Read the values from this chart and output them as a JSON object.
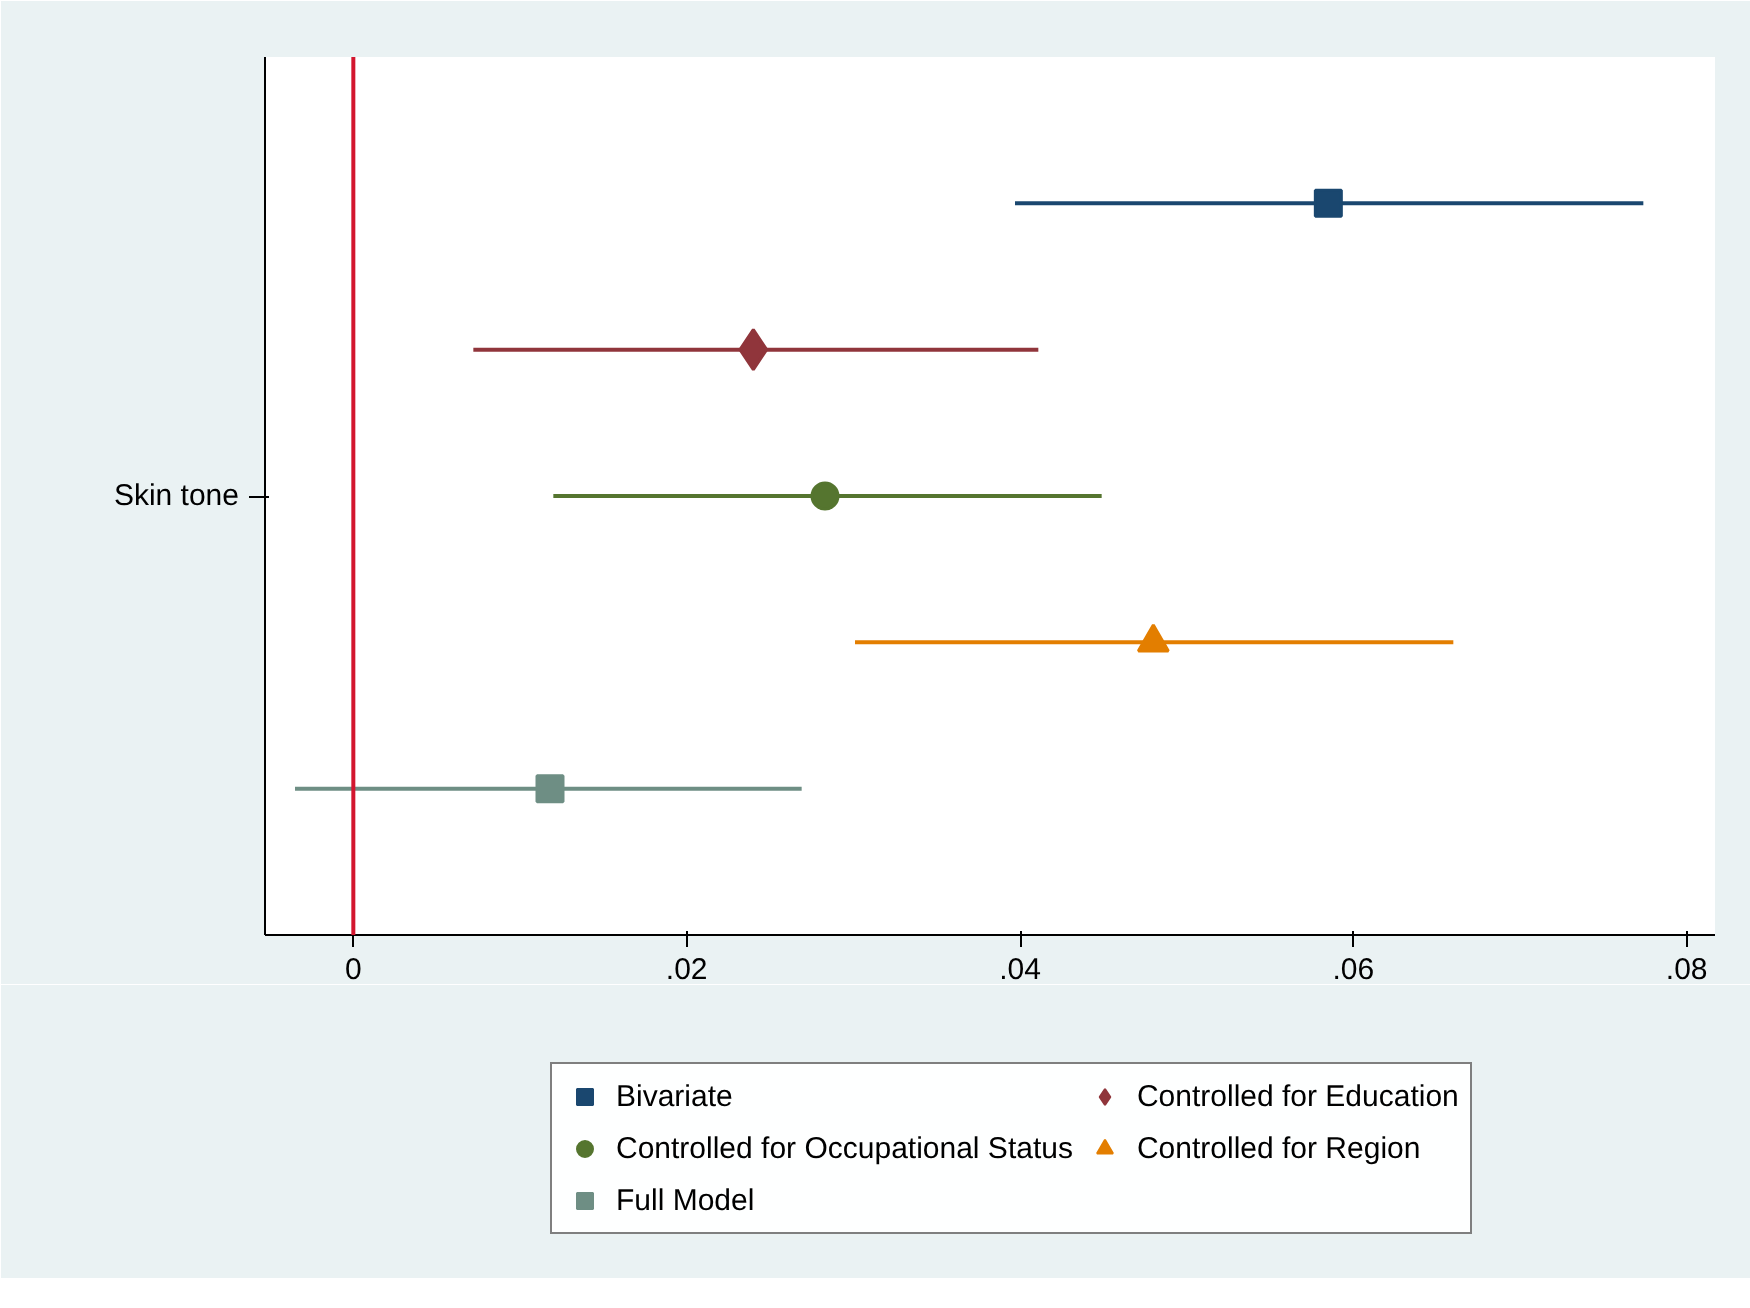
{
  "chart_data": {
    "type": "scatter",
    "orientation": "horizontal",
    "categories": [
      "Skin tone"
    ],
    "series": [
      {
        "name": "Bivariate",
        "color": "#1a476f",
        "marker": "square",
        "values": [
          0.0585
        ],
        "errors": [
          [
            0.0397,
            0.0774
          ]
        ]
      },
      {
        "name": "Controlled for Education",
        "color": "#90353b",
        "marker": "diamond",
        "values": [
          0.024
        ],
        "errors": [
          [
            0.0072,
            0.0411
          ]
        ]
      },
      {
        "name": "Controlled for Occupational Status",
        "color": "#55752f",
        "marker": "circle",
        "values": [
          0.0283
        ],
        "errors": [
          [
            0.012,
            0.0449
          ]
        ]
      },
      {
        "name": "Controlled for Region",
        "color": "#e37e00",
        "marker": "triangle",
        "values": [
          0.048
        ],
        "errors": [
          [
            0.0301,
            0.066
          ]
        ]
      },
      {
        "name": "Full Model",
        "color": "#6e8e84",
        "marker": "square",
        "values": [
          0.0118
        ],
        "errors": [
          [
            -0.0035,
            0.0269
          ]
        ]
      }
    ],
    "xlim": [
      -0.0053,
      0.0817
    ],
    "xticks": [
      {
        "value": 0,
        "label": "0"
      },
      {
        "value": 0.02,
        "label": ".02"
      },
      {
        "value": 0.04,
        "label": ".04"
      },
      {
        "value": 0.06,
        "label": ".06"
      },
      {
        "value": 0.08,
        "label": ".08"
      }
    ],
    "ref_lines": [
      {
        "axis": "x",
        "value": 0,
        "label": null,
        "color": "#d3162f"
      }
    ],
    "grid": false,
    "legend": "bottom"
  }
}
